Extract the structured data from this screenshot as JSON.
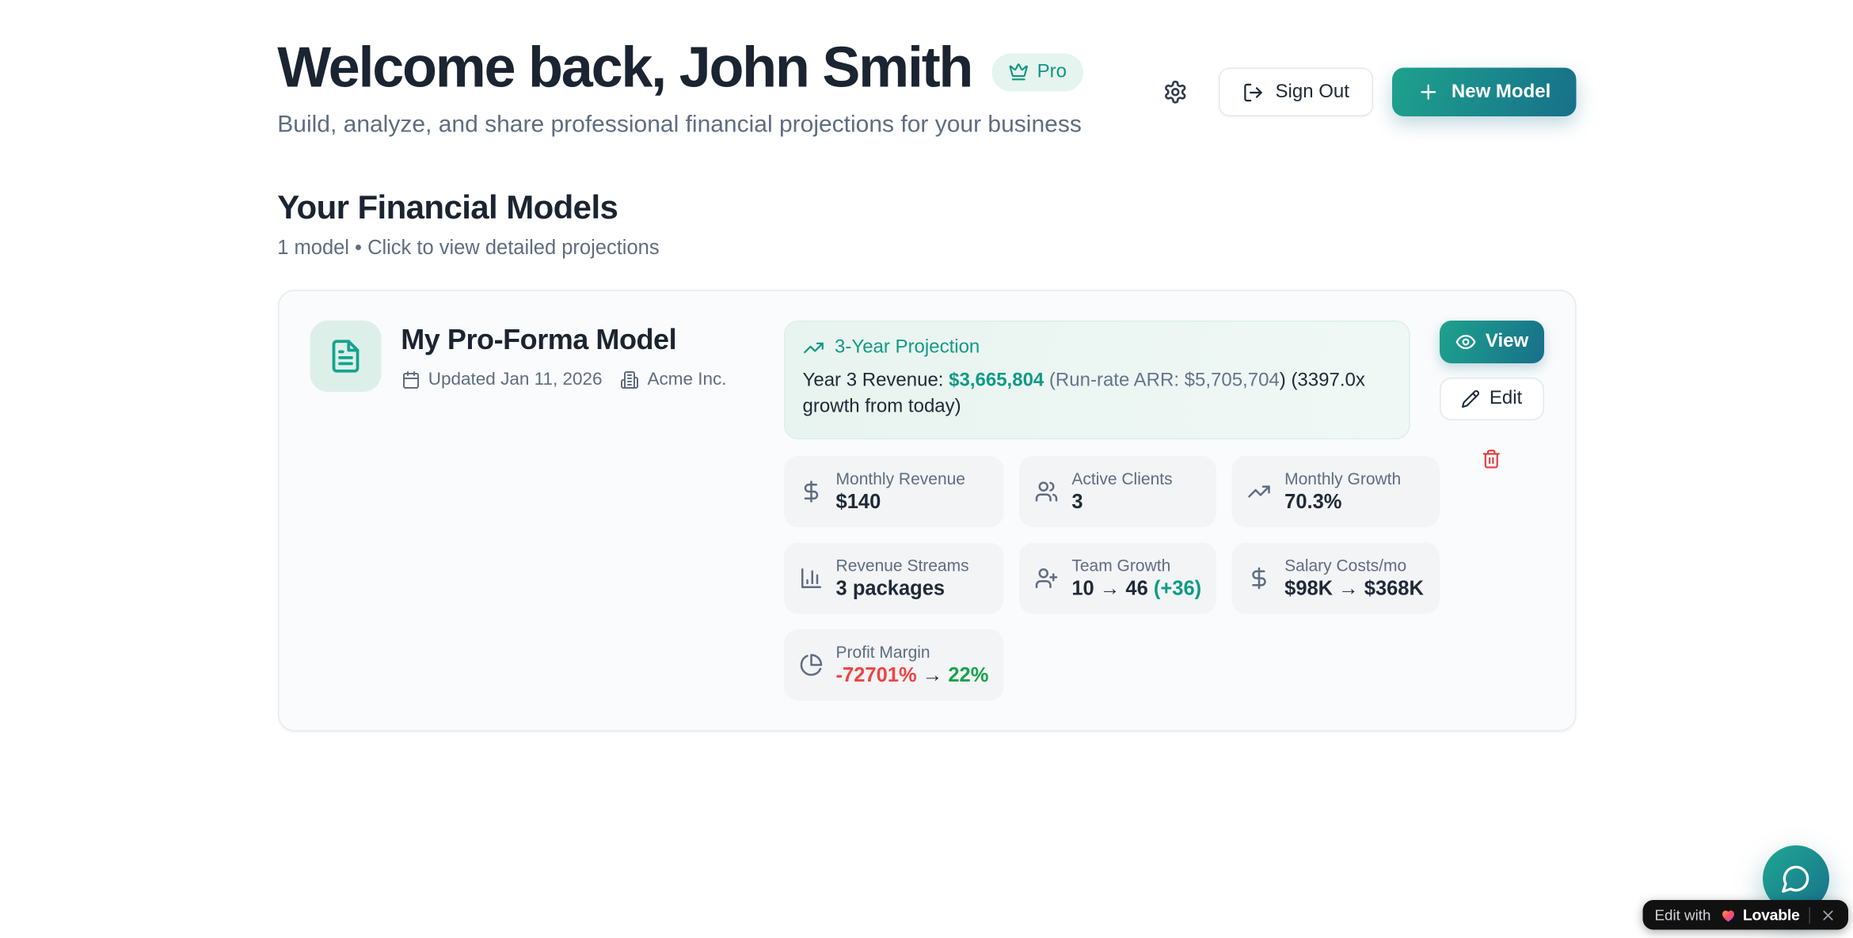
{
  "header": {
    "title": "Welcome back, John Smith",
    "pro_badge": "Pro",
    "subtitle": "Build, analyze, and share professional financial projections for your business",
    "sign_out_label": "Sign Out",
    "new_model_label": "New Model"
  },
  "section": {
    "title": "Your Financial Models",
    "subtitle": "1 model • Click to view detailed projections"
  },
  "card": {
    "name": "My Pro-Forma Model",
    "updated": "Updated Jan 11, 2026",
    "company": "Acme Inc.",
    "projection": {
      "title": "3-Year Projection",
      "parts": [
        {
          "t": "Year 3 Revenue: ",
          "c": "dark"
        },
        {
          "t": "$3,665,804",
          "c": "teal bold"
        },
        {
          "t": " (Run-rate ARR: $5,705,704",
          "c": "muted"
        },
        {
          "t": ") (3397.0x growth from today)",
          "c": "dark"
        }
      ]
    },
    "stats": [
      {
        "icon": "dollar-sign",
        "label": "Monthly Revenue",
        "value": [
          {
            "t": "$140",
            "c": "dark"
          }
        ]
      },
      {
        "icon": "users",
        "label": "Active Clients",
        "value": [
          {
            "t": "3",
            "c": "dark"
          }
        ]
      },
      {
        "icon": "trending-up",
        "label": "Monthly Growth",
        "value": [
          {
            "t": "70.3%",
            "c": "dark"
          }
        ]
      },
      {
        "icon": "bar-chart",
        "label": "Revenue Streams",
        "value": [
          {
            "t": "3 packages",
            "c": "dark"
          }
        ]
      },
      {
        "icon": "user-plus",
        "label": "Team Growth",
        "value": [
          {
            "t": "10 → 46 ",
            "c": "dark"
          },
          {
            "t": "(+36)",
            "c": "teal"
          }
        ]
      },
      {
        "icon": "dollar-sign",
        "label": "Salary Costs/mo",
        "value": [
          {
            "t": "$98K → $368K",
            "c": "dark"
          }
        ]
      },
      {
        "icon": "pie-chart",
        "label": "Profit Margin",
        "value": [
          {
            "t": "-72701%",
            "c": "red"
          },
          {
            "t": " → ",
            "c": "dark"
          },
          {
            "t": "22%",
            "c": "green"
          }
        ]
      }
    ],
    "view_label": "View",
    "edit_label": "Edit"
  },
  "lovable": {
    "prefix": "Edit with",
    "brand": "Lovable"
  },
  "colors": {
    "accent_teal": "#1ea28d",
    "accent_teal_dark": "#17708a",
    "teal_text": "#0f9a85",
    "red": "#ef4444",
    "green": "#16a34a",
    "pill_black": "#111111"
  }
}
